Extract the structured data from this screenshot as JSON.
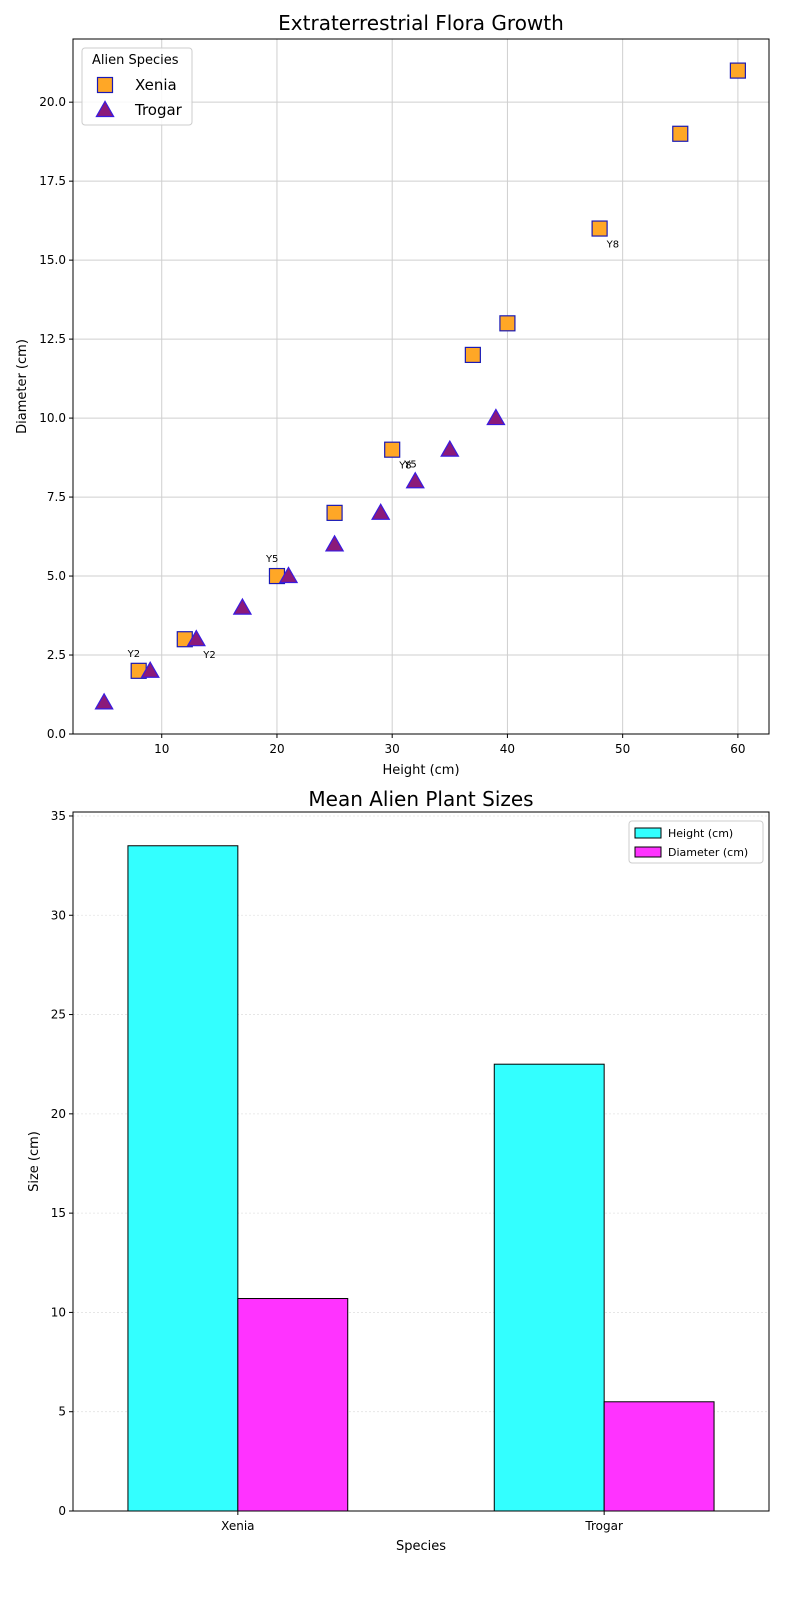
{
  "chart_data": [
    {
      "type": "scatter",
      "title": "Extraterrestrial Flora Growth",
      "xlabel": "Height (cm)",
      "ylabel": "Diameter (cm)",
      "xlim": [
        2.3,
        62.7
      ],
      "ylim": [
        0,
        22
      ],
      "xticks": [
        10,
        20,
        30,
        40,
        50,
        60
      ],
      "xtick_labels": [
        "10",
        "20",
        "30",
        "40",
        "50",
        "60"
      ],
      "yticks": [
        0,
        2.5,
        5,
        7.5,
        10,
        12.5,
        15,
        17.5,
        20
      ],
      "ytick_labels": [
        "0.0",
        "2.5",
        "5.0",
        "7.5",
        "10.0",
        "12.5",
        "15.0",
        "17.5",
        "20.0"
      ],
      "grid": true,
      "legend": {
        "title": "Alien Species",
        "placement": "upper-left"
      },
      "series": [
        {
          "name": "Xenia",
          "marker": "square",
          "fill": "#FFA726",
          "edge": "#1A1AB5",
          "points": [
            [
              8,
              2
            ],
            [
              12,
              3
            ],
            [
              20,
              5
            ],
            [
              25,
              7
            ],
            [
              30,
              9
            ],
            [
              37,
              12
            ],
            [
              40,
              13
            ],
            [
              48,
              16
            ],
            [
              55,
              19
            ],
            [
              60,
              21
            ]
          ]
        },
        {
          "name": "Trogar",
          "marker": "triangle",
          "fill": "#8B1A7A",
          "edge": "#3A1AE0",
          "points": [
            [
              5,
              1
            ],
            [
              9,
              2
            ],
            [
              13,
              3
            ],
            [
              17,
              4
            ],
            [
              21,
              5
            ],
            [
              25,
              6
            ],
            [
              29,
              7
            ],
            [
              32,
              8
            ],
            [
              35,
              9
            ],
            [
              39,
              10
            ]
          ]
        }
      ],
      "annotations": [
        {
          "text": "Y2",
          "x": 8,
          "y": 2,
          "pos": "above-left"
        },
        {
          "text": "Y5",
          "x": 20,
          "y": 5,
          "pos": "above-left"
        },
        {
          "text": "Y8",
          "x": 30,
          "y": 9,
          "pos": "below-right"
        },
        {
          "text": "Y8",
          "x": 48,
          "y": 16,
          "pos": "below-right"
        },
        {
          "text": "Y2",
          "x": 13,
          "y": 3,
          "pos": "below-right"
        },
        {
          "text": "Y5",
          "x": 32,
          "y": 8,
          "pos": "above-left"
        }
      ]
    },
    {
      "type": "bar",
      "title": "Mean Alien Plant Sizes",
      "xlabel": "Species",
      "ylabel": "Size (cm)",
      "categories": [
        "Xenia",
        "Trogar"
      ],
      "ylim": [
        0,
        35.2
      ],
      "yticks": [
        0,
        5,
        10,
        15,
        20,
        25,
        30,
        35
      ],
      "ytick_labels": [
        "0",
        "5",
        "10",
        "15",
        "20",
        "25",
        "30",
        "35"
      ],
      "grid": true,
      "legend": {
        "placement": "upper-right"
      },
      "series": [
        {
          "name": "Height (cm)",
          "color": "#33FFFF",
          "values": [
            33.5,
            22.5
          ]
        },
        {
          "name": "Diameter (cm)",
          "color": "#FF33FF",
          "values": [
            10.7,
            5.5
          ]
        }
      ]
    }
  ]
}
